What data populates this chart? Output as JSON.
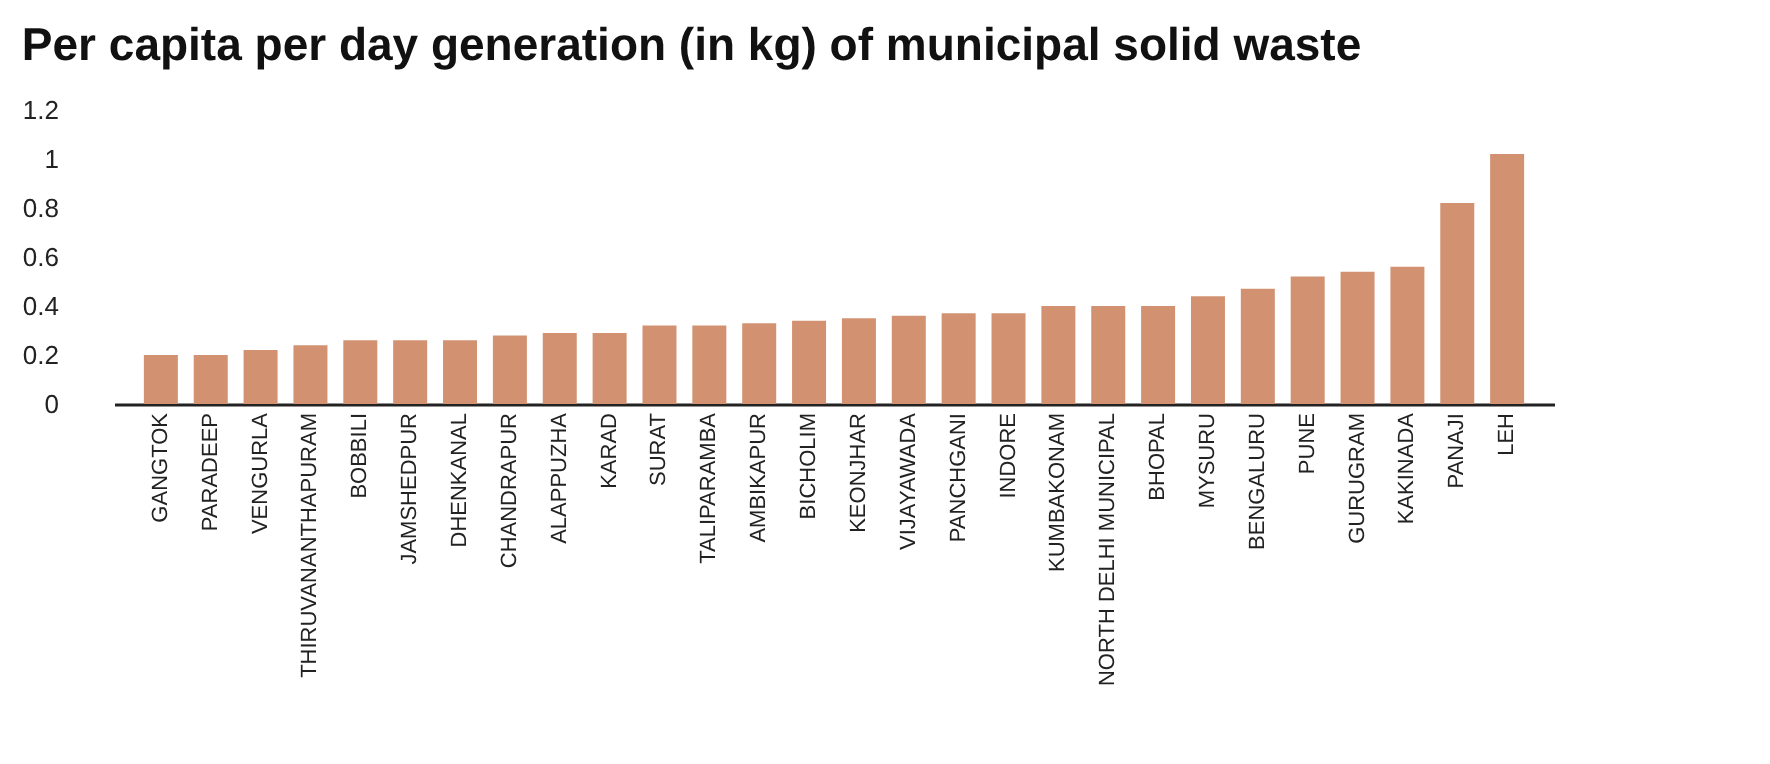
{
  "chart_data": {
    "type": "bar",
    "title": "Per capita per day generation (in kg) of municipal solid waste",
    "categories": [
      "GANGTOK",
      "PARADEEP",
      "VENGURLA",
      "THIRUVANANTHAPURAM",
      "BOBBILI",
      "JAMSHEDPUR",
      "DHENKANAL",
      "CHANDRAPUR",
      "ALAPPUZHA",
      "KARAD",
      "SURAT",
      "TALIPARAMBA",
      "AMBIKAPUR",
      "BICHOLIM",
      "KEONJHAR",
      "VIJAYAWADA",
      "PANCHGANI",
      "INDORE",
      "KUMBAKONAM",
      "NORTH DELHI MUNICIPAL",
      "BHOPAL",
      "MYSURU",
      "BENGALURU",
      "PUNE",
      "GURUGRAM",
      "KAKINADA",
      "PANAJI",
      "LEH"
    ],
    "values": [
      0.2,
      0.2,
      0.22,
      0.24,
      0.26,
      0.26,
      0.26,
      0.28,
      0.29,
      0.29,
      0.32,
      0.32,
      0.33,
      0.34,
      0.35,
      0.36,
      0.37,
      0.37,
      0.4,
      0.4,
      0.4,
      0.44,
      0.47,
      0.52,
      0.54,
      0.56,
      0.82,
      1.02
    ],
    "color": "#d29272",
    "ylim": [
      0,
      1.2
    ],
    "yticks": [
      0,
      0.2,
      0.4,
      0.6,
      0.8,
      1,
      1.2
    ],
    "grid": false
  }
}
